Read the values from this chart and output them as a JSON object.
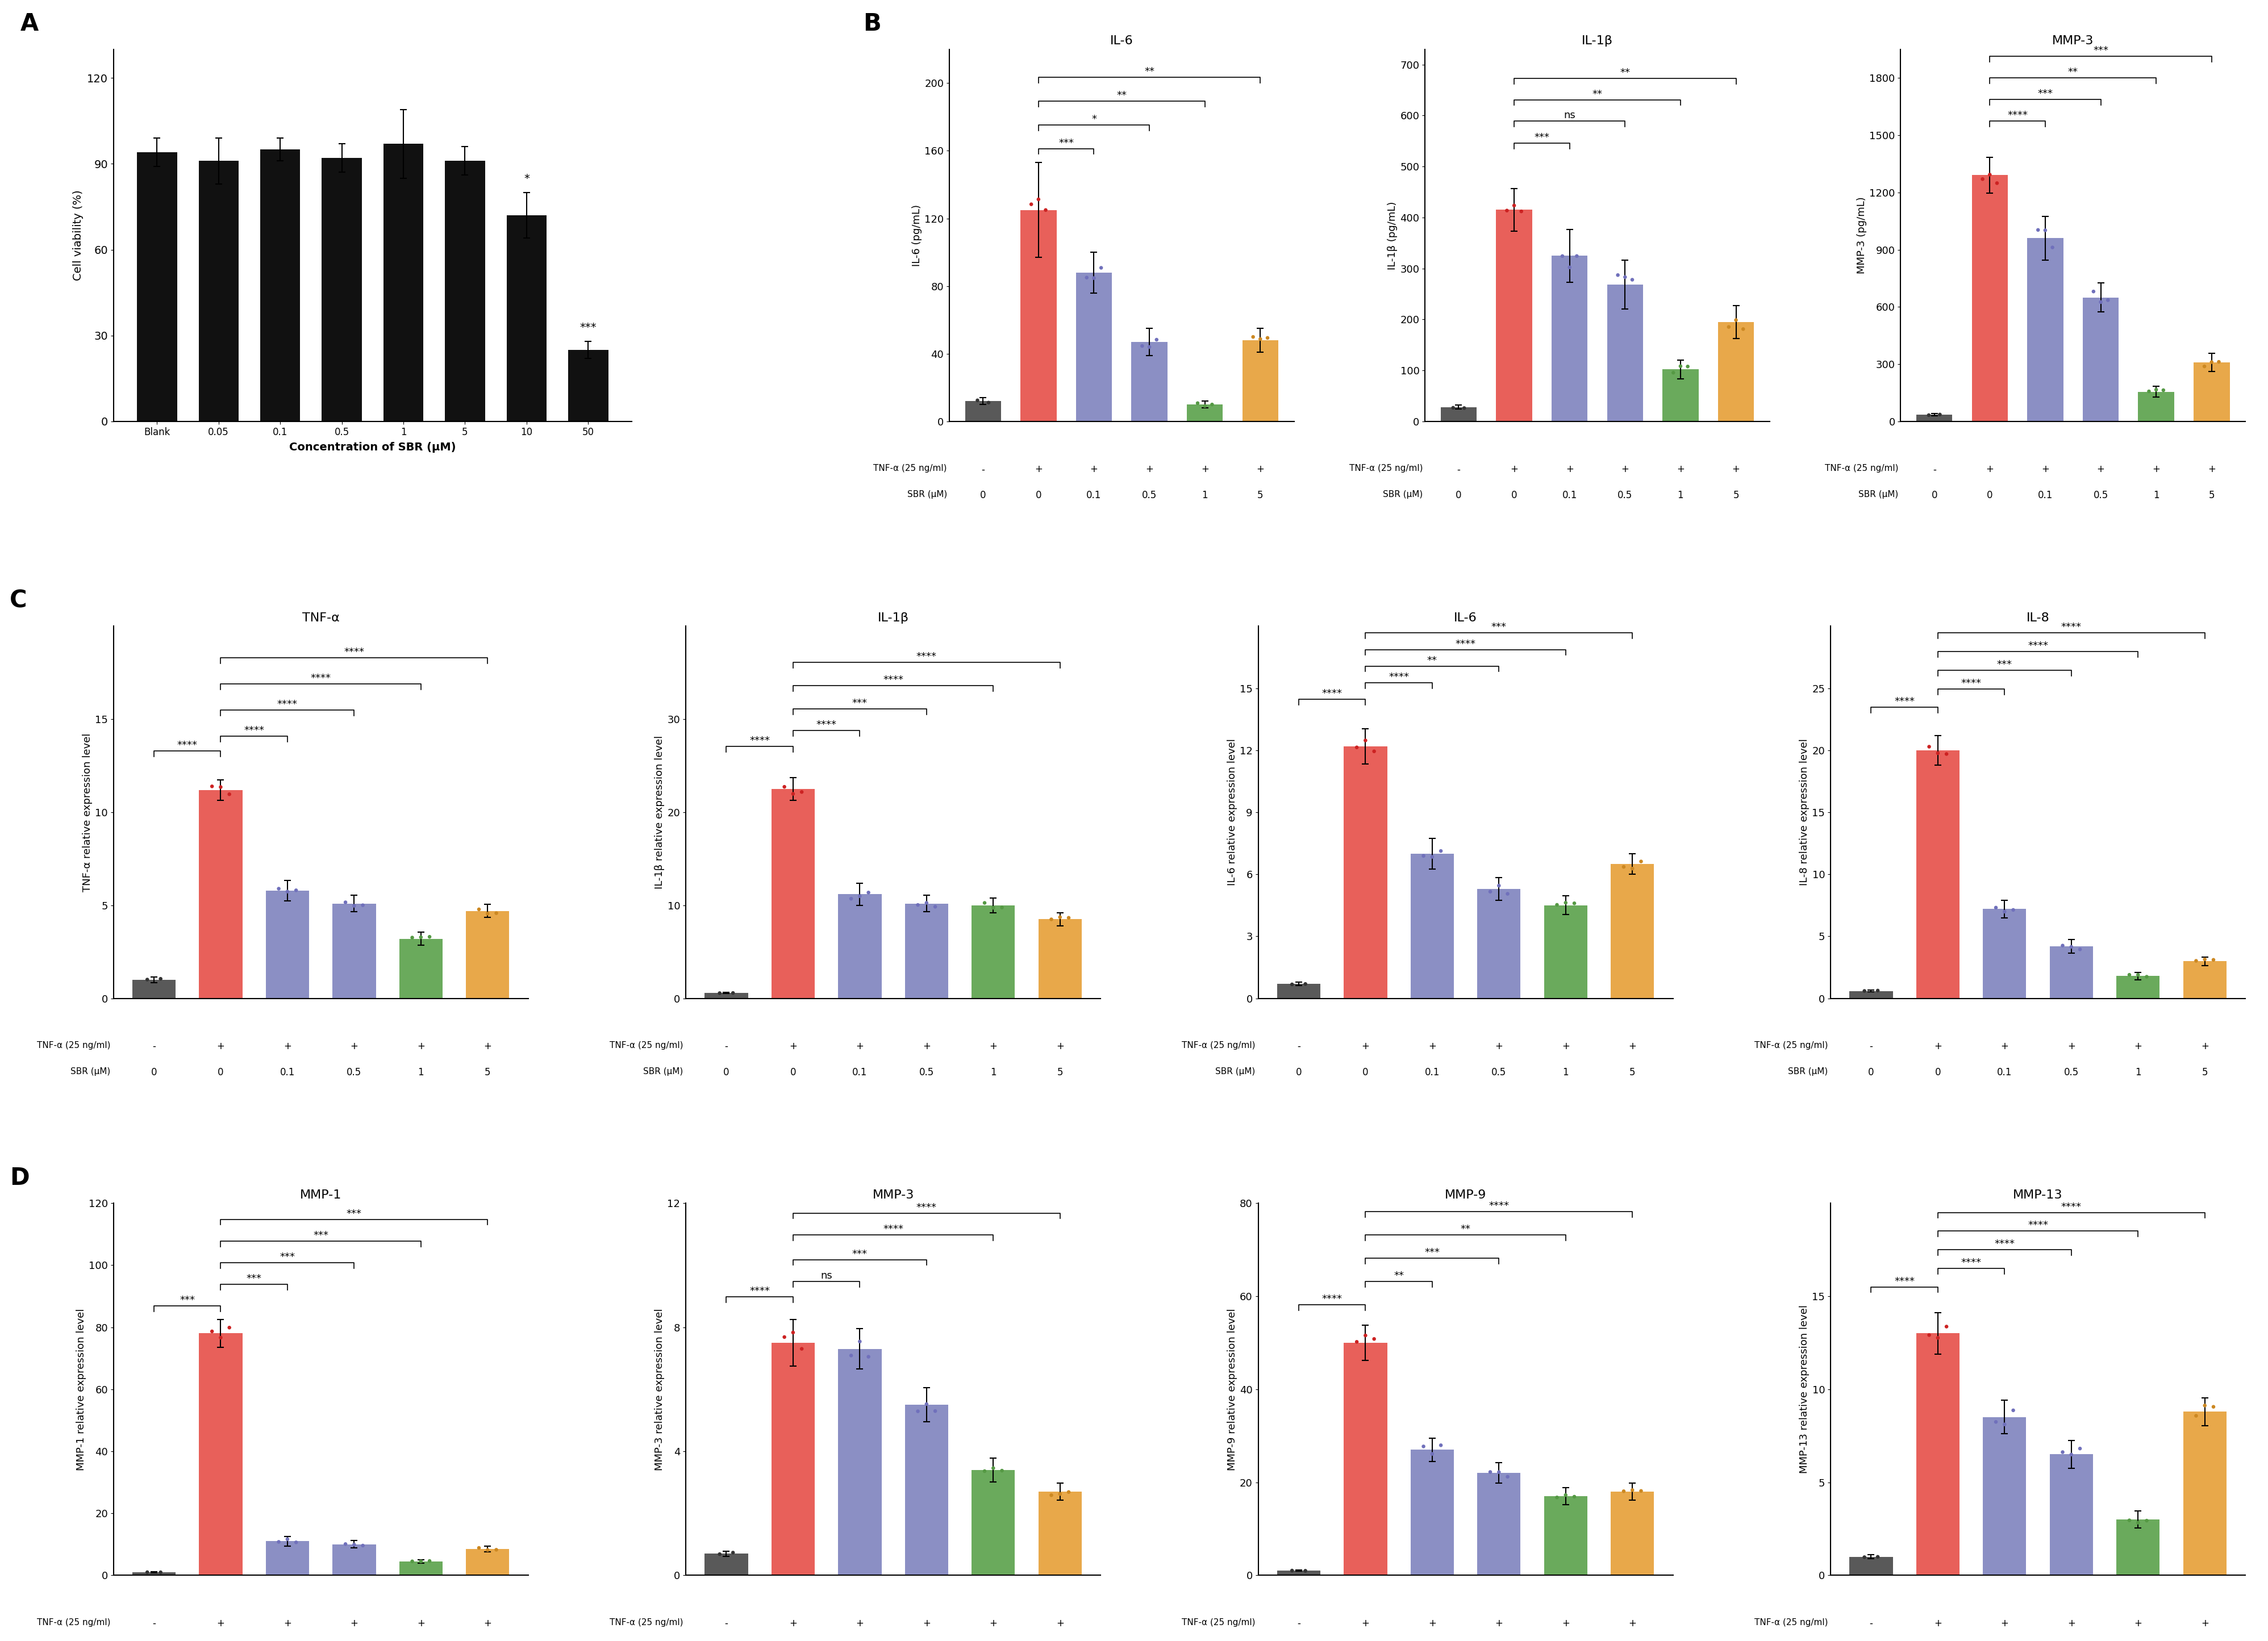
{
  "panel_A": {
    "categories": [
      "Blank",
      "0.05",
      "0.1",
      "0.5",
      "1",
      "5",
      "10",
      "50"
    ],
    "values": [
      94,
      91,
      95,
      92,
      97,
      91,
      72,
      25
    ],
    "errors": [
      5,
      8,
      4,
      5,
      12,
      5,
      8,
      3
    ],
    "bar_color": "#111111",
    "xlabel": "Concentration of SBR (μM)",
    "ylabel": "Cell viability (%)",
    "ylim": [
      0,
      130
    ],
    "yticks": [
      0,
      30,
      60,
      90,
      120
    ],
    "sig_10": "*",
    "sig_50": "***"
  },
  "panel_B": {
    "charts": [
      {
        "title": "IL-6",
        "ylabel": "IL-6 (pg/mL)",
        "values": [
          12,
          125,
          88,
          47,
          10,
          48
        ],
        "errors": [
          2,
          28,
          12,
          8,
          2,
          7
        ],
        "colors": [
          "#595959",
          "#e8605a",
          "#8b8fc4",
          "#8b8fc4",
          "#6aaa5c",
          "#e8a84a"
        ],
        "dot_colors": [
          "#333333",
          "#cc2222",
          "#7070bb",
          "#7070bb",
          "#559944",
          "#cc8822"
        ],
        "ylim": [
          0,
          220
        ],
        "yticks": [
          0,
          40,
          80,
          120,
          160,
          200
        ],
        "sig_brackets": [
          {
            "from": 1,
            "to": 2,
            "y": 158,
            "text": "***"
          },
          {
            "from": 1,
            "to": 3,
            "y": 172,
            "text": "*"
          },
          {
            "from": 1,
            "to": 4,
            "y": 186,
            "text": "**"
          },
          {
            "from": 1,
            "to": 5,
            "y": 200,
            "text": "**"
          }
        ]
      },
      {
        "title": "IL-1β",
        "ylabel": "IL-1β (pg/mL)",
        "values": [
          28,
          415,
          325,
          268,
          102,
          195
        ],
        "errors": [
          4,
          42,
          52,
          48,
          18,
          32
        ],
        "colors": [
          "#595959",
          "#e8605a",
          "#8b8fc4",
          "#8b8fc4",
          "#6aaa5c",
          "#e8a84a"
        ],
        "dot_colors": [
          "#333333",
          "#cc2222",
          "#7070bb",
          "#7070bb",
          "#559944",
          "#cc8822"
        ],
        "ylim": [
          0,
          730
        ],
        "yticks": [
          0,
          100,
          200,
          300,
          400,
          500,
          600,
          700
        ],
        "sig_brackets": [
          {
            "from": 1,
            "to": 2,
            "y": 535,
            "text": "***"
          },
          {
            "from": 1,
            "to": 3,
            "y": 578,
            "text": "ns"
          },
          {
            "from": 1,
            "to": 4,
            "y": 620,
            "text": "**"
          },
          {
            "from": 1,
            "to": 5,
            "y": 662,
            "text": "**"
          }
        ]
      },
      {
        "title": "MMP-3",
        "ylabel": "MMP-3 (pg/mL)",
        "values": [
          35,
          1290,
          960,
          650,
          155,
          310
        ],
        "errors": [
          6,
          95,
          115,
          75,
          28,
          48
        ],
        "colors": [
          "#595959",
          "#e8605a",
          "#8b8fc4",
          "#8b8fc4",
          "#6aaa5c",
          "#e8a84a"
        ],
        "dot_colors": [
          "#333333",
          "#cc2222",
          "#7070bb",
          "#7070bb",
          "#559944",
          "#cc8822"
        ],
        "ylim": [
          0,
          1950
        ],
        "yticks": [
          0,
          300,
          600,
          900,
          1200,
          1500,
          1800
        ],
        "sig_brackets": [
          {
            "from": 1,
            "to": 2,
            "y": 1545,
            "text": "****"
          },
          {
            "from": 1,
            "to": 3,
            "y": 1658,
            "text": "***"
          },
          {
            "from": 1,
            "to": 4,
            "y": 1771,
            "text": "**"
          },
          {
            "from": 1,
            "to": 5,
            "y": 1884,
            "text": "***"
          }
        ]
      }
    ]
  },
  "panel_C": {
    "charts": [
      {
        "title": "TNF-α",
        "ylabel": "TNF-α relative expression level",
        "values": [
          1.0,
          11.2,
          5.8,
          5.1,
          3.2,
          4.7
        ],
        "errors": [
          0.15,
          0.55,
          0.55,
          0.45,
          0.35,
          0.35
        ],
        "colors": [
          "#595959",
          "#e8605a",
          "#8b8fc4",
          "#8b8fc4",
          "#6aaa5c",
          "#e8a84a"
        ],
        "dot_colors": [
          "#333333",
          "#cc2222",
          "#7070bb",
          "#7070bb",
          "#559944",
          "#cc8822"
        ],
        "ylim": [
          0,
          20
        ],
        "yticks": [
          0,
          5,
          10,
          15
        ],
        "sig_brackets": [
          {
            "from": 0,
            "to": 1,
            "y": 13.0,
            "text": "****"
          },
          {
            "from": 1,
            "to": 2,
            "y": 13.8,
            "text": "****"
          },
          {
            "from": 1,
            "to": 3,
            "y": 15.2,
            "text": "****"
          },
          {
            "from": 1,
            "to": 4,
            "y": 16.6,
            "text": "****"
          },
          {
            "from": 1,
            "to": 5,
            "y": 18.0,
            "text": "****"
          }
        ]
      },
      {
        "title": "IL-1β",
        "ylabel": "IL-1β relative expression level",
        "values": [
          0.6,
          22.5,
          11.2,
          10.2,
          10.0,
          8.5
        ],
        "errors": [
          0.08,
          1.2,
          1.2,
          0.9,
          0.8,
          0.7
        ],
        "colors": [
          "#595959",
          "#e8605a",
          "#8b8fc4",
          "#8b8fc4",
          "#6aaa5c",
          "#e8a84a"
        ],
        "dot_colors": [
          "#333333",
          "#cc2222",
          "#7070bb",
          "#7070bb",
          "#559944",
          "#cc8822"
        ],
        "ylim": [
          0,
          40
        ],
        "yticks": [
          0,
          10,
          20,
          30
        ],
        "sig_brackets": [
          {
            "from": 0,
            "to": 1,
            "y": 26.5,
            "text": "****"
          },
          {
            "from": 1,
            "to": 2,
            "y": 28.2,
            "text": "****"
          },
          {
            "from": 1,
            "to": 3,
            "y": 30.5,
            "text": "***"
          },
          {
            "from": 1,
            "to": 4,
            "y": 33.0,
            "text": "****"
          },
          {
            "from": 1,
            "to": 5,
            "y": 35.5,
            "text": "****"
          }
        ]
      },
      {
        "title": "IL-6",
        "ylabel": "IL-6 relative expression level",
        "values": [
          0.7,
          12.2,
          7.0,
          5.3,
          4.5,
          6.5
        ],
        "errors": [
          0.08,
          0.85,
          0.75,
          0.55,
          0.45,
          0.5
        ],
        "colors": [
          "#595959",
          "#e8605a",
          "#8b8fc4",
          "#8b8fc4",
          "#6aaa5c",
          "#e8a84a"
        ],
        "dot_colors": [
          "#333333",
          "#cc2222",
          "#7070bb",
          "#7070bb",
          "#559944",
          "#cc8822"
        ],
        "ylim": [
          0,
          18
        ],
        "yticks": [
          0,
          3,
          6,
          9,
          12,
          15
        ],
        "sig_brackets": [
          {
            "from": 0,
            "to": 1,
            "y": 14.2,
            "text": "****"
          },
          {
            "from": 1,
            "to": 2,
            "y": 15.0,
            "text": "****"
          },
          {
            "from": 1,
            "to": 3,
            "y": 15.8,
            "text": "**"
          },
          {
            "from": 1,
            "to": 4,
            "y": 16.6,
            "text": "****"
          },
          {
            "from": 1,
            "to": 5,
            "y": 17.4,
            "text": "***"
          }
        ]
      },
      {
        "title": "IL-8",
        "ylabel": "IL-8 relative expression level",
        "values": [
          0.6,
          20.0,
          7.2,
          4.2,
          1.8,
          3.0
        ],
        "errors": [
          0.08,
          1.2,
          0.7,
          0.55,
          0.3,
          0.35
        ],
        "colors": [
          "#595959",
          "#e8605a",
          "#8b8fc4",
          "#8b8fc4",
          "#6aaa5c",
          "#e8a84a"
        ],
        "dot_colors": [
          "#333333",
          "#cc2222",
          "#7070bb",
          "#7070bb",
          "#559944",
          "#cc8822"
        ],
        "ylim": [
          0,
          30
        ],
        "yticks": [
          0,
          5,
          10,
          15,
          20,
          25
        ],
        "sig_brackets": [
          {
            "from": 0,
            "to": 1,
            "y": 23.0,
            "text": "****"
          },
          {
            "from": 1,
            "to": 2,
            "y": 24.5,
            "text": "****"
          },
          {
            "from": 1,
            "to": 3,
            "y": 26.0,
            "text": "***"
          },
          {
            "from": 1,
            "to": 4,
            "y": 27.5,
            "text": "****"
          },
          {
            "from": 1,
            "to": 5,
            "y": 29.0,
            "text": "****"
          }
        ]
      }
    ]
  },
  "panel_D": {
    "charts": [
      {
        "title": "MMP-1",
        "ylabel": "MMP-1 relative expression level",
        "values": [
          1.0,
          78,
          11,
          10,
          4.5,
          8.5
        ],
        "errors": [
          0.12,
          4.5,
          1.5,
          1.2,
          0.6,
          0.9
        ],
        "colors": [
          "#595959",
          "#e8605a",
          "#8b8fc4",
          "#8b8fc4",
          "#6aaa5c",
          "#e8a84a"
        ],
        "dot_colors": [
          "#333333",
          "#cc2222",
          "#7070bb",
          "#7070bb",
          "#559944",
          "#cc8822"
        ],
        "ylim": [
          0,
          120
        ],
        "yticks": [
          0,
          20,
          40,
          60,
          80,
          100,
          120
        ],
        "sig_brackets": [
          {
            "from": 0,
            "to": 1,
            "y": 85,
            "text": "***"
          },
          {
            "from": 1,
            "to": 2,
            "y": 92,
            "text": "***"
          },
          {
            "from": 1,
            "to": 3,
            "y": 99,
            "text": "***"
          },
          {
            "from": 1,
            "to": 4,
            "y": 106,
            "text": "***"
          },
          {
            "from": 1,
            "to": 5,
            "y": 113,
            "text": "***"
          }
        ]
      },
      {
        "title": "MMP-3",
        "ylabel": "MMP-3 relative expression level",
        "values": [
          0.7,
          7.5,
          7.3,
          5.5,
          3.4,
          2.7
        ],
        "errors": [
          0.08,
          0.75,
          0.65,
          0.55,
          0.38,
          0.28
        ],
        "colors": [
          "#595959",
          "#e8605a",
          "#8b8fc4",
          "#8b8fc4",
          "#6aaa5c",
          "#e8a84a"
        ],
        "dot_colors": [
          "#333333",
          "#cc2222",
          "#7070bb",
          "#7070bb",
          "#559944",
          "#cc8822"
        ],
        "ylim": [
          0,
          12
        ],
        "yticks": [
          0,
          4,
          8,
          12
        ],
        "sig_brackets": [
          {
            "from": 0,
            "to": 1,
            "y": 8.8,
            "text": "****"
          },
          {
            "from": 1,
            "to": 2,
            "y": 9.3,
            "text": "ns"
          },
          {
            "from": 1,
            "to": 3,
            "y": 10.0,
            "text": "***"
          },
          {
            "from": 1,
            "to": 4,
            "y": 10.8,
            "text": "****"
          },
          {
            "from": 1,
            "to": 5,
            "y": 11.5,
            "text": "****"
          }
        ]
      },
      {
        "title": "MMP-9",
        "ylabel": "MMP-9 relative expression level",
        "values": [
          1.0,
          50,
          27,
          22,
          17,
          18
        ],
        "errors": [
          0.1,
          3.8,
          2.5,
          2.2,
          1.8,
          1.8
        ],
        "colors": [
          "#595959",
          "#e8605a",
          "#8b8fc4",
          "#8b8fc4",
          "#6aaa5c",
          "#e8a84a"
        ],
        "dot_colors": [
          "#333333",
          "#cc2222",
          "#7070bb",
          "#7070bb",
          "#559944",
          "#cc8822"
        ],
        "ylim": [
          0,
          80
        ],
        "yticks": [
          0,
          20,
          40,
          60,
          80
        ],
        "sig_brackets": [
          {
            "from": 0,
            "to": 1,
            "y": 57,
            "text": "****"
          },
          {
            "from": 1,
            "to": 2,
            "y": 62,
            "text": "**"
          },
          {
            "from": 1,
            "to": 3,
            "y": 67,
            "text": "***"
          },
          {
            "from": 1,
            "to": 4,
            "y": 72,
            "text": "**"
          },
          {
            "from": 1,
            "to": 5,
            "y": 77,
            "text": "****"
          }
        ]
      },
      {
        "title": "MMP-13",
        "ylabel": "MMP-13 relative expression level",
        "values": [
          1.0,
          13.0,
          8.5,
          6.5,
          3.0,
          8.8
        ],
        "errors": [
          0.1,
          1.1,
          0.9,
          0.75,
          0.45,
          0.75
        ],
        "colors": [
          "#595959",
          "#e8605a",
          "#8b8fc4",
          "#8b8fc4",
          "#6aaa5c",
          "#e8a84a"
        ],
        "dot_colors": [
          "#333333",
          "#cc2222",
          "#7070bb",
          "#7070bb",
          "#559944",
          "#cc8822"
        ],
        "ylim": [
          0,
          20
        ],
        "yticks": [
          0,
          5,
          10,
          15
        ],
        "sig_brackets": [
          {
            "from": 0,
            "to": 1,
            "y": 15.2,
            "text": "****"
          },
          {
            "from": 1,
            "to": 2,
            "y": 16.2,
            "text": "****"
          },
          {
            "from": 1,
            "to": 3,
            "y": 17.2,
            "text": "****"
          },
          {
            "from": 1,
            "to": 4,
            "y": 18.2,
            "text": "****"
          },
          {
            "from": 1,
            "to": 5,
            "y": 19.2,
            "text": "****"
          }
        ]
      }
    ]
  },
  "tnf_values": [
    "-",
    "+",
    "+",
    "+",
    "+",
    "+"
  ],
  "sbr_values": [
    "0",
    "0",
    "0.1",
    "0.5",
    "1",
    "5"
  ]
}
